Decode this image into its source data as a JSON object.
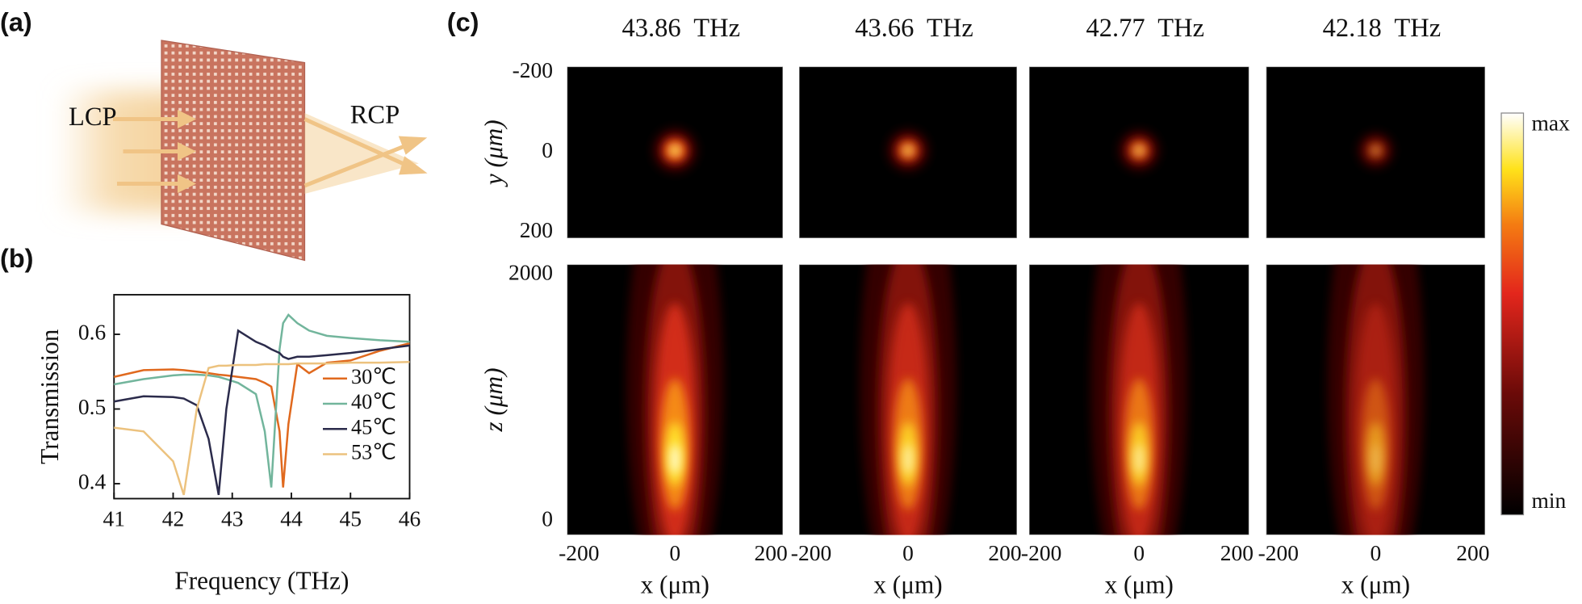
{
  "panel_a": {
    "label": "(a)",
    "input_label": "LCP",
    "output_label": "RCP"
  },
  "chart_data": [
    {
      "type": "line",
      "label": "(b)",
      "xlabel": "Frequency (THz)",
      "ylabel": "Transmission",
      "x": [
        41,
        41.5,
        42,
        42.18,
        42.4,
        42.6,
        42.77,
        42.9,
        43.1,
        43.4,
        43.55,
        43.66,
        43.8,
        43.86,
        43.95,
        44.1,
        44.3,
        44.6,
        45,
        45.5,
        46
      ],
      "series": [
        {
          "name": "30℃",
          "color": "#e0691e",
          "values": [
            0.543,
            0.552,
            0.553,
            0.552,
            0.55,
            0.548,
            0.546,
            0.545,
            0.543,
            0.54,
            0.535,
            0.53,
            0.47,
            0.395,
            0.48,
            0.56,
            0.548,
            0.562,
            0.565,
            0.578,
            0.588
          ]
        },
        {
          "name": "40℃",
          "color": "#72b59c",
          "values": [
            0.533,
            0.54,
            0.545,
            0.546,
            0.546,
            0.545,
            0.543,
            0.54,
            0.535,
            0.52,
            0.47,
            0.395,
            0.58,
            0.615,
            0.626,
            0.615,
            0.605,
            0.598,
            0.595,
            0.592,
            0.59
          ]
        },
        {
          "name": "45℃",
          "color": "#2b2b4b",
          "values": [
            0.51,
            0.517,
            0.516,
            0.514,
            0.505,
            0.46,
            0.385,
            0.5,
            0.605,
            0.59,
            0.585,
            0.58,
            0.575,
            0.57,
            0.567,
            0.57,
            0.57,
            0.572,
            0.575,
            0.58,
            0.585
          ]
        },
        {
          "name": "53℃",
          "color": "#ecc27e",
          "values": [
            0.475,
            0.47,
            0.43,
            0.385,
            0.5,
            0.555,
            0.558,
            0.558,
            0.559,
            0.559,
            0.56,
            0.56,
            0.56,
            0.56,
            0.56,
            0.561,
            0.561,
            0.561,
            0.562,
            0.562,
            0.563
          ]
        }
      ],
      "xlim": [
        41,
        46
      ],
      "xticks": [
        41,
        42,
        43,
        44,
        45,
        46
      ],
      "ylim": [
        0.38,
        0.653
      ],
      "yticks": [
        0.4,
        0.5,
        0.6
      ],
      "legend": "center right"
    },
    {
      "type": "heatmap",
      "label": "(c)",
      "xlabel": "x (μm)",
      "panels": [
        {
          "title": "43.86  THz"
        },
        {
          "title": "43.66  THz"
        },
        {
          "title": "42.77  THz"
        },
        {
          "title": "42.18  THz"
        }
      ],
      "xlim": [
        -225,
        225
      ],
      "xticks": [
        -200,
        0,
        200
      ],
      "rows": [
        {
          "ylabel": "y (μm)",
          "ylim": [
            215,
            -215
          ],
          "yticks": [
            -200,
            0,
            200
          ]
        },
        {
          "ylabel": "z (μm)",
          "ylim": [
            -115,
            2082
          ],
          "yticks": [
            0,
            2000
          ]
        }
      ],
      "colorbar": {
        "max_label": "max",
        "min_label": "min"
      }
    }
  ]
}
